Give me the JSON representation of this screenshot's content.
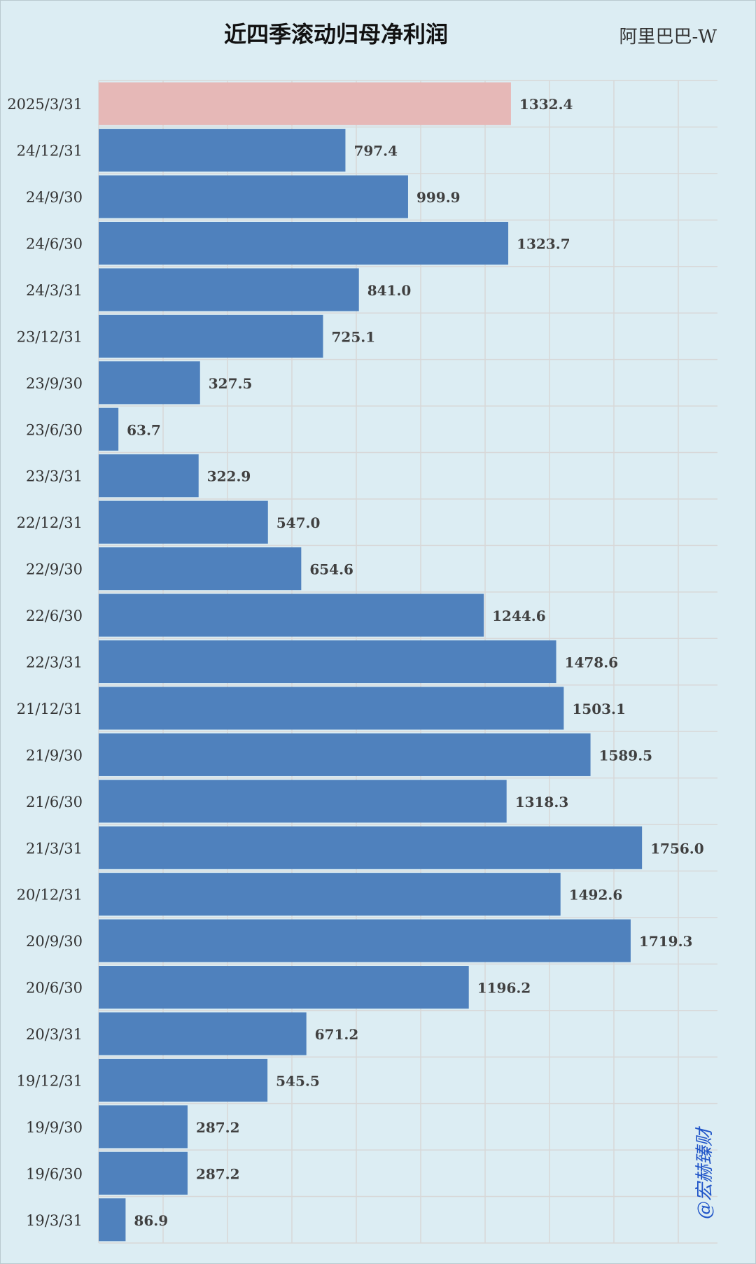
{
  "header": {
    "title": "近四季滚动归母净利润",
    "company": "阿里巴巴-W"
  },
  "watermark": "@宏赫臻财",
  "colors": {
    "bar": "#4f81bd",
    "bar_highlight": "#e6b8b7",
    "grid": "#d8d8d8",
    "background": "#dcedf3"
  },
  "chart_data": {
    "type": "bar",
    "orientation": "horizontal",
    "title": "近四季滚动归母净利润",
    "xlabel": "",
    "ylabel": "",
    "xlim": [
      0,
      2000
    ],
    "grid": true,
    "categories": [
      "2025/3/31",
      "24/12/31",
      "24/9/30",
      "24/6/30",
      "24/3/31",
      "23/12/31",
      "23/9/30",
      "23/6/30",
      "23/3/31",
      "22/12/31",
      "22/9/30",
      "22/6/30",
      "22/3/31",
      "21/12/31",
      "21/9/30",
      "21/6/30",
      "21/3/31",
      "20/12/31",
      "20/9/30",
      "20/6/30",
      "20/3/31",
      "19/12/31",
      "19/9/30",
      "19/6/30",
      "19/3/31"
    ],
    "values": [
      1332.4,
      797.4,
      999.9,
      1323.7,
      841.0,
      725.1,
      327.5,
      63.7,
      322.9,
      547.0,
      654.6,
      1244.6,
      1478.6,
      1503.1,
      1589.5,
      1318.3,
      1756.0,
      1492.6,
      1719.3,
      1196.2,
      671.2,
      545.5,
      287.2,
      287.2,
      86.9
    ],
    "labels": [
      "1332.4",
      "797.4",
      "999.9",
      "1323.7",
      "841.0",
      "725.1",
      "327.5",
      "63.7",
      "322.9",
      "547.0",
      "654.6",
      "1244.6",
      "1478.6",
      "1503.1",
      "1589.5",
      "1318.3",
      "1756.0",
      "1492.6",
      "1719.3",
      "1196.2",
      "671.2",
      "545.5",
      "287.2",
      "287.2",
      "86.9"
    ],
    "highlight_index": 0
  }
}
